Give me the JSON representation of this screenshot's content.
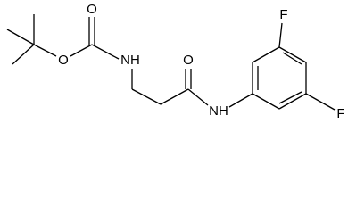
{
  "atoms": [
    {
      "label": "O"
    },
    {
      "label": "O"
    },
    {
      "label": "NH"
    },
    {
      "label": "O"
    },
    {
      "label": "NH"
    },
    {
      "label": "F"
    },
    {
      "label": "F"
    }
  ]
}
